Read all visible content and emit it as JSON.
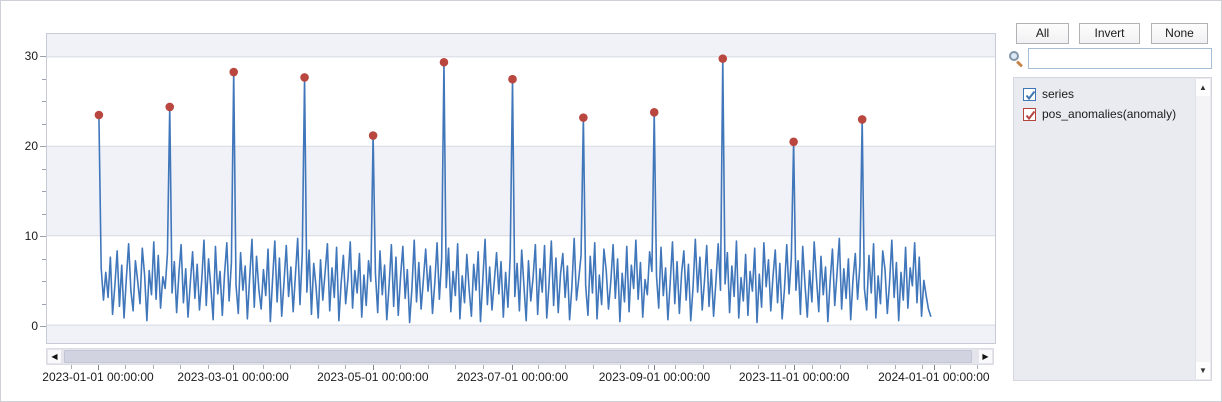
{
  "colors": {
    "series_line": "#4076ba",
    "anomaly_dot": "#b9473f",
    "band_fill": "#f1f2f7",
    "gridline": "#d8dae3"
  },
  "icons": {
    "search": "magnifier-icon",
    "scroll_left": "◀",
    "scroll_right": "▶",
    "scroll_up": "▲",
    "scroll_down": "▼"
  },
  "legend_panel": {
    "buttons": {
      "all": "All",
      "invert": "Invert",
      "none": "None"
    },
    "search": {
      "value": "",
      "placeholder": ""
    },
    "items": [
      {
        "label": "series",
        "checked": true,
        "color": "#3f76b4"
      },
      {
        "label": "pos_anomalies(anomaly)",
        "checked": true,
        "color": "#b5443f"
      }
    ]
  },
  "chart_data": {
    "type": "line",
    "title": "",
    "xlabel": "",
    "ylabel": "",
    "grid": "horizontal-bands",
    "legend_position": "right-panel",
    "x_axis": {
      "start_date": "2023-01-01 00:00:00",
      "interval": "1 day",
      "tick_labels": [
        "2023-01-01 00:00:00",
        "2023-03-01 00:00:00",
        "2023-05-01 00:00:00",
        "2023-07-01 00:00:00",
        "2023-09-01 00:00:00",
        "2023-11-01 00:00:00",
        "2024-01-01 00:00:00"
      ],
      "tick_days": [
        0,
        59,
        120,
        181,
        243,
        304,
        365
      ],
      "minor_tick_interval_days": 12
    },
    "y_axis": {
      "tick_labels": [
        0,
        10,
        20,
        30
      ],
      "minor_step": 2.5,
      "ylim": [
        -2,
        32.5
      ]
    },
    "series": [
      {
        "name": "series",
        "values": [
          23.5,
          6.4,
          2.8,
          5.9,
          3.1,
          7.6,
          1.2,
          4.4,
          8.3,
          2.1,
          6.7,
          0.8,
          5.2,
          9.1,
          3.8,
          1.6,
          7.2,
          4.9,
          2.4,
          8.6,
          5.6,
          0.5,
          6.1,
          3.4,
          9.3,
          2.9,
          7.8,
          1.9,
          5.4,
          4.1,
          8.0,
          24.4,
          3.6,
          7.1,
          1.4,
          5.8,
          9.0,
          2.5,
          6.3,
          0.9,
          4.7,
          8.2,
          3.0,
          6.8,
          1.7,
          5.1,
          9.5,
          2.2,
          7.4,
          4.2,
          0.6,
          8.8,
          3.5,
          6.0,
          1.1,
          5.7,
          9.2,
          2.7,
          7.0,
          28.3,
          4.5,
          1.3,
          8.1,
          3.9,
          6.6,
          0.7,
          5.3,
          9.6,
          2.0,
          7.7,
          4.0,
          1.8,
          6.2,
          3.3,
          8.5,
          0.4,
          5.0,
          9.4,
          2.6,
          7.5,
          1.0,
          4.8,
          8.9,
          3.2,
          6.5,
          1.5,
          5.5,
          9.7,
          2.3,
          7.9,
          27.7,
          3.7,
          8.4,
          1.2,
          6.9,
          4.3,
          0.8,
          7.3,
          2.8,
          5.9,
          9.1,
          1.6,
          6.4,
          3.1,
          8.7,
          0.5,
          4.6,
          7.8,
          2.4,
          5.2,
          9.3,
          1.9,
          6.1,
          3.6,
          8.0,
          0.9,
          5.6,
          2.2,
          7.2,
          4.9,
          21.2,
          5.8,
          1.4,
          8.3,
          3.4,
          6.7,
          0.6,
          4.4,
          9.0,
          2.1,
          7.6,
          1.1,
          5.4,
          8.8,
          3.0,
          6.2,
          0.3,
          4.1,
          9.5,
          2.6,
          7.0,
          1.8,
          5.1,
          8.5,
          3.8,
          6.6,
          1.3,
          4.7,
          9.2,
          2.9,
          7.4,
          29.4,
          4.2,
          8.6,
          1.5,
          6.0,
          3.3,
          9.1,
          0.7,
          5.5,
          2.5,
          7.9,
          4.0,
          1.0,
          6.8,
          3.9,
          8.2,
          0.4,
          5.0,
          9.6,
          2.3,
          6.5,
          1.7,
          4.8,
          8.1,
          3.5,
          7.1,
          0.9,
          5.9,
          2.0,
          7.7,
          27.5,
          3.2,
          6.9,
          1.6,
          8.4,
          4.5,
          0.5,
          7.2,
          2.7,
          5.3,
          9.0,
          1.2,
          6.3,
          3.7,
          8.9,
          0.8,
          4.6,
          9.4,
          2.2,
          7.5,
          1.4,
          5.7,
          8.0,
          3.1,
          6.6,
          0.6,
          4.3,
          9.7,
          2.8,
          5.2,
          7.8,
          23.2,
          4.4,
          1.1,
          7.7,
          3.6,
          9.2,
          0.7,
          5.6,
          2.3,
          8.5,
          6.1,
          1.8,
          4.9,
          9.0,
          3.0,
          7.4,
          0.4,
          5.8,
          2.6,
          8.8,
          1.5,
          6.7,
          4.1,
          9.5,
          2.9,
          7.0,
          0.9,
          5.1,
          3.4,
          8.2,
          6.0,
          23.8,
          5.5,
          1.9,
          8.7,
          3.3,
          6.4,
          0.6,
          4.7,
          9.3,
          2.4,
          7.1,
          1.3,
          5.9,
          8.3,
          2.8,
          6.8,
          0.5,
          4.2,
          9.6,
          3.7,
          7.6,
          1.7,
          5.0,
          8.9,
          2.1,
          6.2,
          1.0,
          4.8,
          9.1,
          3.9,
          29.8,
          4.6,
          8.1,
          1.4,
          6.6,
          3.2,
          9.4,
          0.8,
          5.3,
          2.7,
          7.9,
          1.1,
          6.0,
          3.8,
          8.6,
          0.3,
          5.7,
          2.0,
          9.2,
          4.3,
          7.3,
          1.6,
          5.4,
          8.4,
          2.5,
          6.9,
          0.7,
          4.0,
          9.0,
          3.5,
          7.5,
          20.5,
          3.9,
          7.2,
          1.2,
          8.8,
          4.5,
          0.9,
          6.1,
          2.6,
          9.3,
          5.2,
          1.5,
          7.7,
          3.4,
          6.5,
          0.4,
          4.9,
          8.5,
          2.2,
          5.8,
          9.7,
          1.8,
          6.3,
          3.0,
          7.4,
          0.6,
          5.1,
          8.0,
          2.9,
          6.7,
          23.0,
          4.1,
          1.7,
          7.8,
          3.6,
          9.1,
          0.8,
          5.5,
          2.4,
          8.3,
          6.2,
          1.3,
          4.7,
          9.5,
          3.1,
          7.0,
          0.5,
          5.9,
          2.8,
          8.7,
          1.9,
          6.4,
          4.4,
          9.2,
          2.5,
          7.6,
          1.0,
          5.0,
          3.3,
          1.8,
          1.0
        ]
      }
    ],
    "anomalies": {
      "name": "pos_anomalies(anomaly)",
      "points": [
        {
          "date": "2023-01-01",
          "day": 0,
          "value": 23.5
        },
        {
          "date": "2023-02-01",
          "day": 31,
          "value": 24.4
        },
        {
          "date": "2023-03-01",
          "day": 59,
          "value": 28.3
        },
        {
          "date": "2023-04-01",
          "day": 90,
          "value": 27.7
        },
        {
          "date": "2023-05-01",
          "day": 120,
          "value": 21.2
        },
        {
          "date": "2023-06-01",
          "day": 151,
          "value": 29.4
        },
        {
          "date": "2023-07-01",
          "day": 181,
          "value": 27.5
        },
        {
          "date": "2023-08-01",
          "day": 212,
          "value": 23.2
        },
        {
          "date": "2023-09-01",
          "day": 243,
          "value": 23.8
        },
        {
          "date": "2023-10-01",
          "day": 273,
          "value": 29.8
        },
        {
          "date": "2023-11-01",
          "day": 304,
          "value": 20.5
        },
        {
          "date": "2023-12-01",
          "day": 334,
          "value": 23.0
        }
      ]
    }
  }
}
